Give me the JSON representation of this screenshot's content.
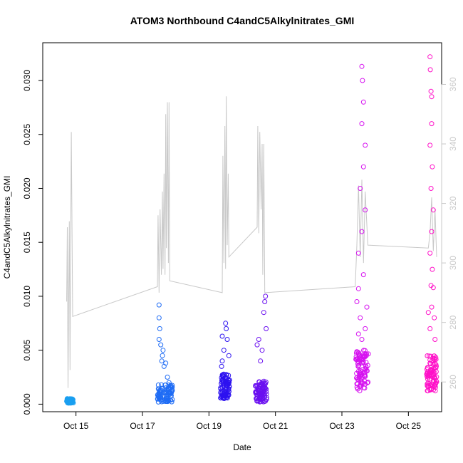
{
  "chart_data": {
    "type": "scatter",
    "title": "ATOM3 Northbound C4andC5Alkylnitrates_GMI",
    "xlabel": "Date",
    "ylabel": "C4andC5Alkylnitrates_GMI",
    "xlim": [
      "2016-10-14",
      "2016-10-26"
    ],
    "ylim": [
      -0.0007,
      0.0335
    ],
    "y_ticks": [
      "0.000",
      "0.005",
      "0.010",
      "0.015",
      "0.020",
      "0.025",
      "0.030"
    ],
    "x_ticks": [
      "Oct 15",
      "Oct 17",
      "Oct 19",
      "Oct 21",
      "Oct 23",
      "Oct 25"
    ],
    "right_axis": {
      "ylim": [
        250,
        374
      ],
      "ticks": [
        "260",
        "280",
        "300",
        "320",
        "340",
        "360"
      ],
      "color": "#c8c8c8"
    },
    "grid": false,
    "series": [
      {
        "color": "#1a9ff0",
        "min": [
          14.72,
          0.0001
        ],
        "max": [
          14.92,
          0.0005
        ],
        "points": [
          [
            14.75,
            0.0003
          ],
          [
            14.8,
            0.0004
          ],
          [
            14.85,
            0.0002
          ],
          [
            14.9,
            0.0003
          ],
          [
            14.78,
            0.0001
          ],
          [
            14.88,
            0.0004
          ]
        ]
      },
      {
        "color": "#1f6cf5",
        "min": [
          17.45,
          0.0002
        ],
        "max": [
          17.9,
          0.0018
        ],
        "points": [
          [
            17.5,
            0.0092
          ],
          [
            17.5,
            0.008
          ],
          [
            17.52,
            0.007
          ],
          [
            17.5,
            0.006
          ],
          [
            17.55,
            0.0055
          ],
          [
            17.6,
            0.0045
          ],
          [
            17.58,
            0.004
          ],
          [
            17.65,
            0.0035
          ],
          [
            17.7,
            0.0038
          ],
          [
            17.62,
            0.005
          ],
          [
            17.75,
            0.0025
          ],
          [
            17.8,
            0.002
          ],
          [
            17.85,
            0.0015
          ]
        ]
      },
      {
        "color": "#2d12f0",
        "min": [
          19.35,
          0.0005
        ],
        "max": [
          19.62,
          0.0028
        ],
        "points": [
          [
            19.4,
            0.0063
          ],
          [
            19.5,
            0.0075
          ],
          [
            19.52,
            0.007
          ],
          [
            19.45,
            0.005
          ],
          [
            19.55,
            0.006
          ],
          [
            19.4,
            0.004
          ],
          [
            19.6,
            0.0045
          ],
          [
            19.38,
            0.0035
          ]
        ]
      },
      {
        "color": "#6a0ff0",
        "min": [
          20.4,
          0.0002
        ],
        "max": [
          20.75,
          0.0022
        ],
        "points": [
          [
            20.5,
            0.006
          ],
          [
            20.45,
            0.0055
          ],
          [
            20.65,
            0.0085
          ],
          [
            20.7,
            0.01
          ],
          [
            20.68,
            0.0095
          ],
          [
            20.6,
            0.005
          ],
          [
            20.72,
            0.007
          ],
          [
            20.55,
            0.004
          ]
        ]
      },
      {
        "color": "#d612f0",
        "min": [
          23.42,
          0.0012
        ],
        "max": [
          23.8,
          0.005
        ],
        "points": [
          [
            23.5,
            0.0107
          ],
          [
            23.6,
            0.0313
          ],
          [
            23.62,
            0.03
          ],
          [
            23.65,
            0.028
          ],
          [
            23.6,
            0.026
          ],
          [
            23.7,
            0.024
          ],
          [
            23.65,
            0.022
          ],
          [
            23.55,
            0.02
          ],
          [
            23.7,
            0.018
          ],
          [
            23.6,
            0.016
          ],
          [
            23.5,
            0.014
          ],
          [
            23.65,
            0.012
          ],
          [
            23.45,
            0.0095
          ],
          [
            23.75,
            0.009
          ],
          [
            23.55,
            0.008
          ],
          [
            23.7,
            0.007
          ],
          [
            23.5,
            0.0065
          ],
          [
            23.6,
            0.006
          ]
        ]
      },
      {
        "color": "#ff10c8",
        "min": [
          25.55,
          0.0012
        ],
        "max": [
          25.85,
          0.0045
        ],
        "points": [
          [
            25.65,
            0.0322
          ],
          [
            25.66,
            0.031
          ],
          [
            25.68,
            0.029
          ],
          [
            25.7,
            0.0285
          ],
          [
            25.7,
            0.026
          ],
          [
            25.65,
            0.024
          ],
          [
            25.72,
            0.022
          ],
          [
            25.68,
            0.02
          ],
          [
            25.75,
            0.018
          ],
          [
            25.7,
            0.016
          ],
          [
            25.65,
            0.014
          ],
          [
            25.72,
            0.0125
          ],
          [
            25.68,
            0.011
          ],
          [
            25.75,
            0.0108
          ],
          [
            25.7,
            0.009
          ],
          [
            25.6,
            0.0085
          ],
          [
            25.78,
            0.008
          ],
          [
            25.65,
            0.007
          ],
          [
            25.8,
            0.006
          ]
        ]
      }
    ],
    "gray_line": {
      "color": "#c8c8c8",
      "points": [
        [
          14.72,
          287
        ],
        [
          14.74,
          312
        ],
        [
          14.76,
          258
        ],
        [
          14.8,
          314
        ],
        [
          14.82,
          264
        ],
        [
          14.86,
          344
        ],
        [
          14.9,
          282
        ],
        [
          17.45,
          292
        ],
        [
          17.47,
          316
        ],
        [
          17.5,
          290
        ],
        [
          17.53,
          318
        ],
        [
          17.57,
          296
        ],
        [
          17.6,
          324
        ],
        [
          17.62,
          298
        ],
        [
          17.65,
          330
        ],
        [
          17.68,
          296
        ],
        [
          17.7,
          350
        ],
        [
          17.72,
          305
        ],
        [
          17.75,
          354
        ],
        [
          17.78,
          300
        ],
        [
          17.8,
          354
        ],
        [
          17.82,
          294
        ],
        [
          19.4,
          290
        ],
        [
          19.42,
          336
        ],
        [
          19.45,
          300
        ],
        [
          19.48,
          346
        ],
        [
          19.5,
          298
        ],
        [
          19.52,
          356
        ],
        [
          19.55,
          306
        ],
        [
          19.58,
          330
        ],
        [
          19.6,
          302
        ],
        [
          20.45,
          312
        ],
        [
          20.47,
          346
        ],
        [
          20.5,
          310
        ],
        [
          20.53,
          344
        ],
        [
          20.57,
          318
        ],
        [
          20.6,
          340
        ],
        [
          20.62,
          296
        ],
        [
          20.65,
          340
        ],
        [
          20.68,
          290
        ],
        [
          23.4,
          292
        ],
        [
          23.45,
          306
        ],
        [
          23.5,
          326
        ],
        [
          23.55,
          302
        ],
        [
          23.6,
          328
        ],
        [
          23.65,
          300
        ],
        [
          23.7,
          324
        ],
        [
          23.78,
          306
        ],
        [
          25.6,
          305
        ],
        [
          25.65,
          310
        ],
        [
          25.7,
          322
        ],
        [
          25.75,
          304
        ],
        [
          25.8,
          318
        ],
        [
          25.85,
          302
        ]
      ]
    }
  }
}
